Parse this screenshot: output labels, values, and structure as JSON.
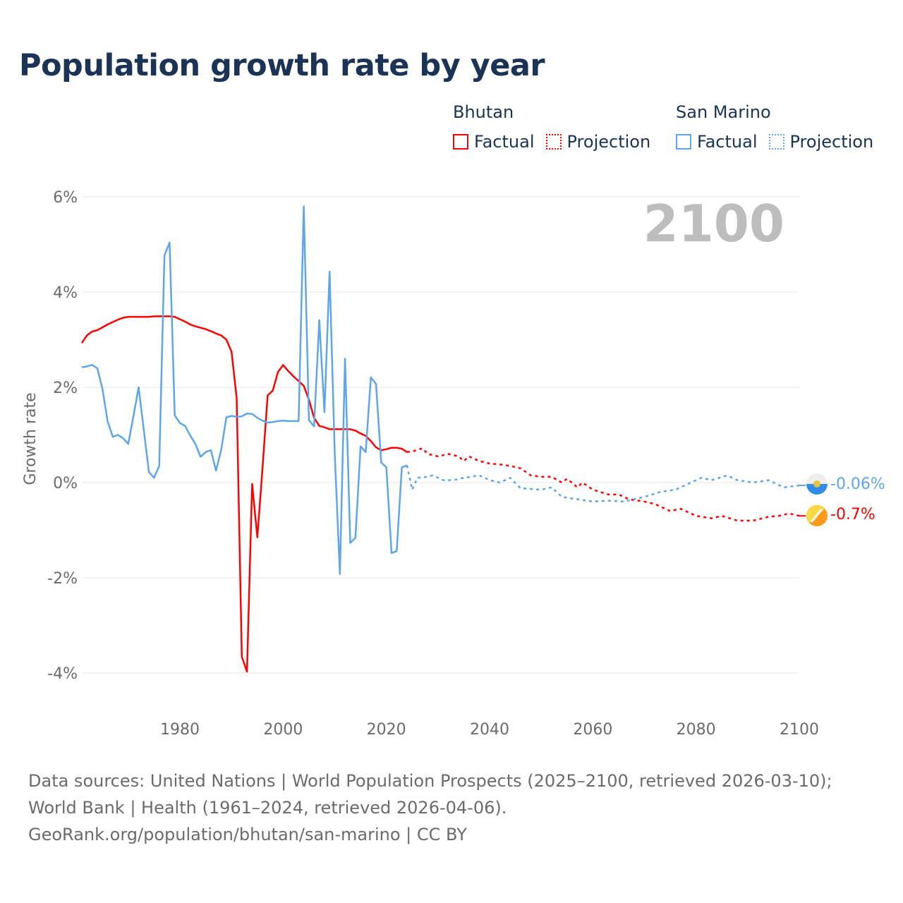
{
  "title": "Population growth rate by year",
  "legend": {
    "groups": [
      {
        "name": "Bhutan",
        "color": "#ff0000",
        "factual": "Factual",
        "projection": "Projection"
      },
      {
        "name": "San Marino",
        "color": "#5ea5ea",
        "factual": "Factual",
        "projection": "Projection"
      }
    ]
  },
  "year_watermark": "2100",
  "end_labels": {
    "san_marino": "-0.06%",
    "bhutan": "-0.7%"
  },
  "footer": {
    "sources": "Data sources: United Nations | World Population Prospects (2025–2100, retrieved 2026-03-10); World Bank | Health (1961–2024, retrieved 2026-04-06).",
    "credit": "GeoRank.org/population/bhutan/san-marino | CC BY"
  },
  "chart_data": {
    "type": "line",
    "title": "Population growth rate by year",
    "xlabel": "",
    "ylabel": "Growth rate",
    "xlim": [
      1961,
      2100
    ],
    "ylim": [
      -4.9,
      6
    ],
    "xticks": [
      1980,
      2000,
      2020,
      2040,
      2060,
      2080,
      2100
    ],
    "xtick_labels": [
      "1980",
      "2000",
      "2020",
      "2040",
      "2060",
      "2080",
      "2100"
    ],
    "yticks": [
      6,
      4,
      2,
      0,
      -2,
      -4
    ],
    "ytick_labels": [
      "6%",
      "4%",
      "2%",
      "0%",
      "-2%",
      "-4%"
    ],
    "grid": true,
    "legend_position": "top-right",
    "series": [
      {
        "name": "Bhutan",
        "kind": "Factual",
        "color": "#ff0000",
        "x": [
          1961,
          1962,
          1963,
          1964,
          1965,
          1966,
          1967,
          1968,
          1969,
          1970,
          1971,
          1972,
          1973,
          1974,
          1975,
          1976,
          1977,
          1978,
          1979,
          1980,
          1981,
          1982,
          1983,
          1984,
          1985,
          1986,
          1987,
          1988,
          1989,
          1990,
          1991,
          1992,
          1993,
          1994,
          1995,
          1996,
          1997,
          1998,
          1999,
          2000,
          2001,
          2002,
          2003,
          2004,
          2005,
          2006,
          2007,
          2008,
          2009,
          2010,
          2011,
          2012,
          2013,
          2014,
          2015,
          2016,
          2017,
          2018,
          2019,
          2020,
          2021,
          2022,
          2023,
          2024
        ],
        "y": [
          2.93,
          3.09,
          3.17,
          3.2,
          3.26,
          3.32,
          3.37,
          3.42,
          3.46,
          3.48,
          3.48,
          3.48,
          3.48,
          3.48,
          3.49,
          3.49,
          3.49,
          3.49,
          3.48,
          3.43,
          3.38,
          3.32,
          3.28,
          3.25,
          3.22,
          3.18,
          3.13,
          3.09,
          3.0,
          2.75,
          1.77,
          -3.66,
          -3.97,
          -0.03,
          -1.15,
          0.3,
          1.83,
          1.93,
          2.32,
          2.47,
          2.34,
          2.23,
          2.13,
          2.03,
          1.74,
          1.36,
          1.19,
          1.16,
          1.12,
          1.12,
          1.12,
          1.12,
          1.12,
          1.09,
          1.03,
          0.98,
          0.87,
          0.74,
          0.68,
          0.7,
          0.73,
          0.73,
          0.71,
          0.64
        ]
      },
      {
        "name": "Bhutan",
        "kind": "Projection",
        "color": "#ff0000",
        "x": [
          2024,
          2025,
          2027,
          2028,
          2030,
          2032,
          2034,
          2035,
          2036,
          2038,
          2040,
          2042,
          2044,
          2046,
          2048,
          2050,
          2052,
          2054,
          2055,
          2057,
          2058,
          2060,
          2063,
          2065,
          2067,
          2070,
          2072,
          2075,
          2077,
          2080,
          2083,
          2085,
          2088,
          2091,
          2094,
          2096,
          2098,
          2100
        ],
        "y": [
          0.64,
          0.65,
          0.72,
          0.6,
          0.55,
          0.6,
          0.55,
          0.45,
          0.55,
          0.45,
          0.4,
          0.38,
          0.35,
          0.3,
          0.15,
          0.12,
          0.12,
          0.0,
          0.08,
          -0.1,
          0.0,
          -0.15,
          -0.25,
          -0.25,
          -0.35,
          -0.4,
          -0.45,
          -0.6,
          -0.55,
          -0.7,
          -0.75,
          -0.7,
          -0.8,
          -0.8,
          -0.72,
          -0.7,
          -0.65,
          -0.7
        ]
      },
      {
        "name": "San Marino",
        "kind": "Factual",
        "color": "#5ea5ea",
        "x": [
          1961,
          1962,
          1963,
          1964,
          1965,
          1966,
          1967,
          1968,
          1969,
          1970,
          1971,
          1972,
          1973,
          1974,
          1975,
          1976,
          1977,
          1978,
          1979,
          1980,
          1981,
          1982,
          1983,
          1984,
          1985,
          1986,
          1987,
          1988,
          1989,
          1990,
          1991,
          1992,
          1993,
          1994,
          1995,
          1996,
          1997,
          1998,
          1999,
          2000,
          2001,
          2002,
          2003,
          2004,
          2005,
          2006,
          2007,
          2008,
          2009,
          2010,
          2011,
          2012,
          2013,
          2014,
          2015,
          2016,
          2017,
          2018,
          2019,
          2020,
          2021,
          2022,
          2023,
          2024
        ],
        "y": [
          2.42,
          2.44,
          2.47,
          2.4,
          1.96,
          1.28,
          0.96,
          1.0,
          0.93,
          0.81,
          1.4,
          2.0,
          1.11,
          0.22,
          0.1,
          0.35,
          4.77,
          5.04,
          1.41,
          1.25,
          1.19,
          0.99,
          0.81,
          0.54,
          0.64,
          0.68,
          0.25,
          0.68,
          1.37,
          1.4,
          1.38,
          1.39,
          1.45,
          1.44,
          1.36,
          1.3,
          1.26,
          1.27,
          1.29,
          1.3,
          1.29,
          1.29,
          1.29,
          5.8,
          1.31,
          1.18,
          3.41,
          1.48,
          4.43,
          0.6,
          -1.92,
          2.6,
          -1.27,
          -1.16,
          0.76,
          0.64,
          2.21,
          2.07,
          0.42,
          0.32,
          -1.48,
          -1.44,
          0.32,
          0.36
        ]
      },
      {
        "name": "San Marino",
        "kind": "Projection",
        "color": "#5ea5ea",
        "x": [
          2024,
          2025,
          2026,
          2028,
          2029,
          2031,
          2033,
          2035,
          2038,
          2040,
          2042,
          2044,
          2046,
          2050,
          2052,
          2054,
          2057,
          2060,
          2063,
          2066,
          2068,
          2070,
          2073,
          2076,
          2079,
          2081,
          2083,
          2086,
          2088,
          2091,
          2094,
          2097,
          2100
        ],
        "y": [
          0.36,
          -0.15,
          0.1,
          0.12,
          0.15,
          0.05,
          0.05,
          0.1,
          0.15,
          0.05,
          0.0,
          0.1,
          -0.12,
          -0.15,
          -0.1,
          -0.3,
          -0.35,
          -0.4,
          -0.38,
          -0.4,
          -0.35,
          -0.3,
          -0.2,
          -0.15,
          0.0,
          0.1,
          0.05,
          0.15,
          0.05,
          0.0,
          0.05,
          -0.1,
          -0.06
        ]
      }
    ]
  }
}
